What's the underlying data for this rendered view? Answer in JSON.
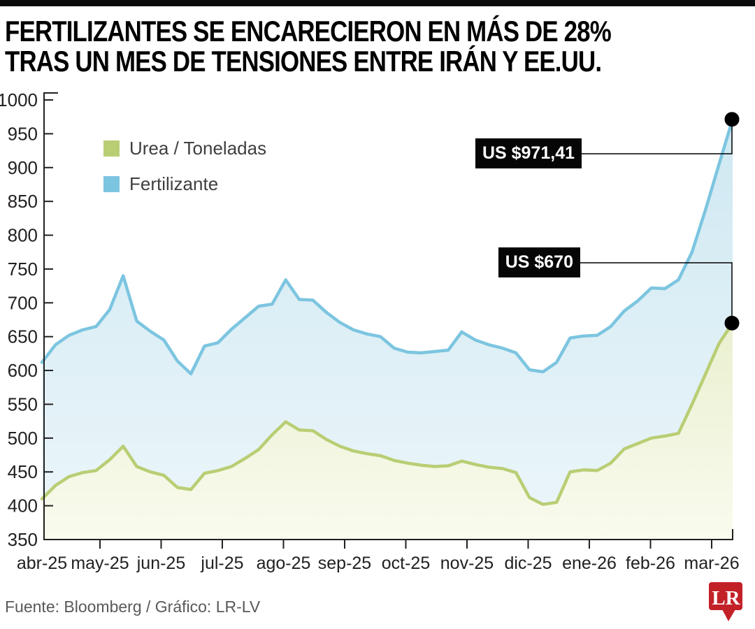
{
  "header": {
    "title_line1": "FERTILIZANTES SE ENCARECIERON EN MÁS DE 28%",
    "title_line2": "TRAS UN MES DE TENSIONES ENTRE IRÁN Y EE.UU."
  },
  "legend": {
    "items": [
      {
        "label": "Urea / Toneladas",
        "color": "#b9ce74"
      },
      {
        "label": "Fertilizante",
        "color": "#7cc5e0"
      }
    ]
  },
  "annotations": [
    {
      "label": "US $971,41",
      "series": "Fertilizante",
      "value": 971.41
    },
    {
      "label": "US $670",
      "series": "Urea / Toneladas",
      "value": 670
    }
  ],
  "footer": {
    "source": "Fuente: Bloomberg / Gráfico: LR-LV",
    "logo_text": "LR",
    "logo_color": "#c32128"
  },
  "chart_data": {
    "type": "area",
    "x_granularity": "weekly",
    "x_labels": [
      "abr-25",
      "may-25",
      "jun-25",
      "jul-25",
      "ago-25",
      "sep-25",
      "oct-25",
      "nov-25",
      "dic-25",
      "ene-26",
      "feb-26",
      "mar-26"
    ],
    "ylim": [
      350,
      1000
    ],
    "ytick_step": 50,
    "grid": false,
    "legend_position": "top-left-inside",
    "axis_color": "#232020",
    "series": [
      {
        "name": "Urea / Toneladas",
        "color": "#b9ce74",
        "fill_top": "#eaf0d0",
        "fill_bottom": "#f9fbee",
        "values": [
          410,
          430,
          443,
          449,
          452,
          468,
          488,
          458,
          450,
          445,
          427,
          424,
          448,
          452,
          458,
          470,
          483,
          505,
          524,
          512,
          511,
          498,
          488,
          481,
          477,
          474,
          467,
          463,
          460,
          458,
          459,
          466,
          461,
          457,
          455,
          449,
          412,
          402,
          405,
          450,
          453,
          452,
          463,
          484,
          492,
          500,
          503,
          507,
          550,
          595,
          640,
          670
        ]
      },
      {
        "name": "Fertilizante",
        "color": "#7cc5e0",
        "fill_top": "#cfe8f2",
        "fill_bottom": "#ecf6fa",
        "values": [
          612,
          638,
          652,
          660,
          665,
          690,
          740,
          673,
          658,
          645,
          614,
          595,
          636,
          641,
          661,
          678,
          695,
          698,
          734,
          705,
          704,
          686,
          671,
          660,
          654,
          650,
          633,
          627,
          626,
          628,
          630,
          657,
          645,
          638,
          633,
          626,
          601,
          598,
          612,
          648,
          651,
          652,
          665,
          688,
          703,
          722,
          721,
          734,
          775,
          838,
          905,
          971.41
        ]
      }
    ],
    "end_labels": [
      "US $971,41",
      "US $670"
    ]
  }
}
